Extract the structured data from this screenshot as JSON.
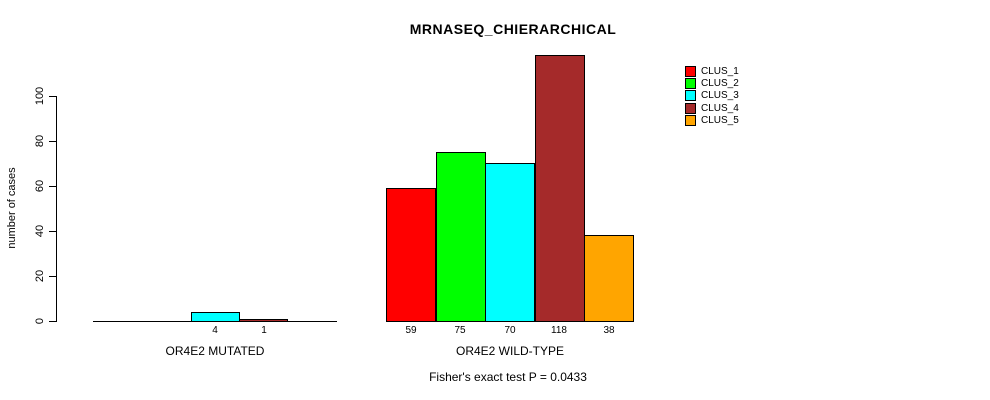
{
  "title": "MRNASEQ_CHIERARCHICAL",
  "chart_data": {
    "type": "bar",
    "title": "MRNASEQ_CHIERARCHICAL",
    "ylabel": "number of cases",
    "yticks": [
      0,
      20,
      40,
      60,
      80,
      100
    ],
    "ylim": [
      0,
      120
    ],
    "grid": false,
    "legend_position": "top-right",
    "series": [
      {
        "name": "CLUS_1",
        "color": "#FF0000"
      },
      {
        "name": "CLUS_2",
        "color": "#00FF00"
      },
      {
        "name": "CLUS_3",
        "color": "#00FFFF"
      },
      {
        "name": "CLUS_4",
        "color": "#A52A2A"
      },
      {
        "name": "CLUS_5",
        "color": "#FFA500"
      }
    ],
    "groups": [
      {
        "label": "OR4E2 MUTATED",
        "values": [
          0,
          0,
          4,
          1,
          0
        ]
      },
      {
        "label": "OR4E2 WILD-TYPE",
        "values": [
          59,
          75,
          70,
          118,
          38
        ]
      }
    ],
    "footnote": "Fisher's exact test P = 0.0433"
  }
}
